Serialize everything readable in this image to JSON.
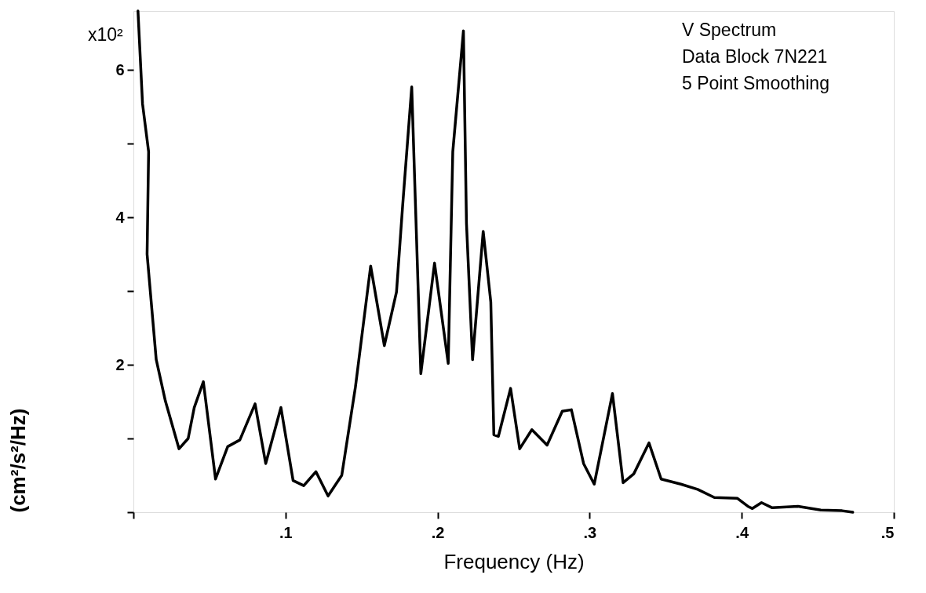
{
  "chart_data": {
    "type": "line",
    "xlabel": "Frequency (Hz)",
    "ylabel": "(cm²/s²/Hz)",
    "annotations": [
      "x10²",
      "V Spectrum",
      "Data Block 7N221",
      "5 Point Smoothing"
    ],
    "xlim": [
      0,
      0.5
    ],
    "ylim": [
      0,
      6.8
    ],
    "xticks": [
      {
        "value": 0,
        "label": null
      },
      {
        "value": 0.1,
        "label": ".1"
      },
      {
        "value": 0.2,
        "label": ".2"
      },
      {
        "value": 0.3,
        "label": ".3"
      },
      {
        "value": 0.4,
        "label": ".4"
      },
      {
        "value": 0.5,
        "label": ".5"
      }
    ],
    "yticks": [
      {
        "value": 0,
        "label": null
      },
      {
        "value": 1,
        "label": null
      },
      2,
      {
        "value": 3,
        "label": null
      },
      4,
      {
        "value": 5,
        "label": null
      },
      6
    ],
    "grid": false,
    "marker": "none",
    "line_style": "solid",
    "series": [
      {
        "color": "#000000",
        "x": [
          0.003,
          0.006,
          0.01,
          0.009,
          0.015,
          0.021,
          0.03,
          0.036,
          0.04,
          0.046,
          0.054,
          0.062,
          0.07,
          0.08,
          0.087,
          0.097,
          0.105,
          0.112,
          0.12,
          0.128,
          0.137,
          0.146,
          0.156,
          0.165,
          0.173,
          0.177,
          0.183,
          0.189,
          0.198,
          0.207,
          0.21,
          0.217,
          0.219,
          0.223,
          0.23,
          0.235,
          0.237,
          0.24,
          0.248,
          0.254,
          0.262,
          0.272,
          0.282,
          0.288,
          0.296,
          0.303,
          0.315,
          0.322,
          0.329,
          0.339,
          0.347,
          0.36,
          0.371,
          0.382,
          0.397,
          0.404,
          0.407,
          0.413,
          0.42,
          0.437,
          0.452,
          0.466,
          0.473
        ],
        "values": [
          6.8,
          5.54,
          4.89,
          3.5,
          2.07,
          1.51,
          0.86,
          1.0,
          1.42,
          1.77,
          0.45,
          0.89,
          0.98,
          1.47,
          0.66,
          1.42,
          0.43,
          0.36,
          0.55,
          0.22,
          0.5,
          1.7,
          3.34,
          2.26,
          2.99,
          4.15,
          5.77,
          1.88,
          3.38,
          2.02,
          4.89,
          6.53,
          3.92,
          2.07,
          3.81,
          2.85,
          1.05,
          1.03,
          1.68,
          0.86,
          1.12,
          0.91,
          1.37,
          1.39,
          0.66,
          0.38,
          1.61,
          0.4,
          0.52,
          0.94,
          0.45,
          0.38,
          0.31,
          0.2,
          0.19,
          0.08,
          0.05,
          0.13,
          0.06,
          0.08,
          0.03,
          0.02,
          0.0
        ]
      }
    ]
  }
}
